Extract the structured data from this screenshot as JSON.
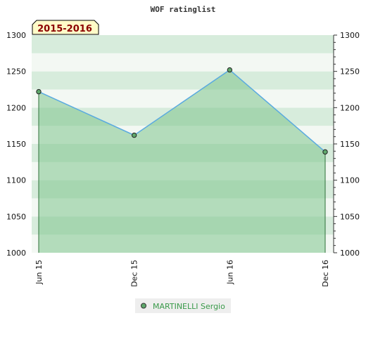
{
  "chart_data": {
    "type": "area",
    "title": "WOF ratinglist",
    "period_label": "2015-2016",
    "categories": [
      "Jun 15",
      "Dec 15",
      "Jun 16",
      "Dec 16"
    ],
    "series": [
      {
        "name": "MARTINELLI Sergio",
        "values": [
          1222,
          1162,
          1252,
          1139
        ]
      }
    ],
    "ylim": [
      1000,
      1300
    ],
    "yticks": [
      1000,
      1050,
      1100,
      1150,
      1200,
      1250,
      1300
    ],
    "left_axis": true,
    "right_axis": true,
    "legend_position": "bottom-center",
    "colors": {
      "line": "#5aaae0",
      "fill": "#7dc58c",
      "marker": "#5fa86c",
      "legend_bg": "#eeeeee",
      "legend_text": "#3a9a4a",
      "period_bg": "#fffbc8",
      "period_text": "#8b0000"
    }
  }
}
